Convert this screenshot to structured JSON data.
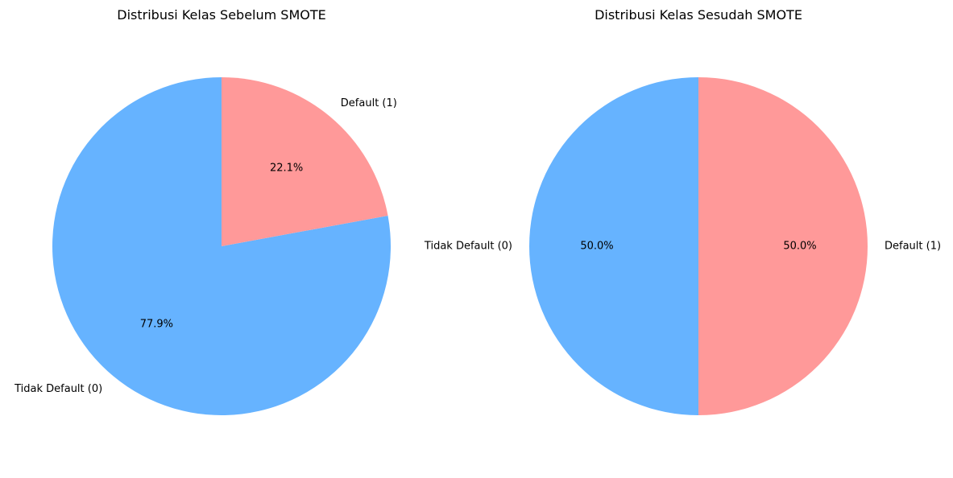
{
  "chart_data": [
    {
      "type": "pie",
      "title": "Distribusi Kelas Sebelum SMOTE",
      "start_angle_deg": 90,
      "counterclockwise": true,
      "slices": [
        {
          "label": "Tidak Default (0)",
          "value": 77.9,
          "pct_label": "77.9%",
          "color": "#66b3ff"
        },
        {
          "label": "Default (1)",
          "value": 22.1,
          "pct_label": "22.1%",
          "color": "#ff9999"
        }
      ]
    },
    {
      "type": "pie",
      "title": "Distribusi Kelas Sesudah SMOTE",
      "start_angle_deg": 90,
      "counterclockwise": true,
      "slices": [
        {
          "label": "Tidak Default (0)",
          "value": 50.0,
          "pct_label": "50.0%",
          "color": "#66b3ff"
        },
        {
          "label": "Default (1)",
          "value": 50.0,
          "pct_label": "50.0%",
          "color": "#ff9999"
        }
      ]
    }
  ]
}
